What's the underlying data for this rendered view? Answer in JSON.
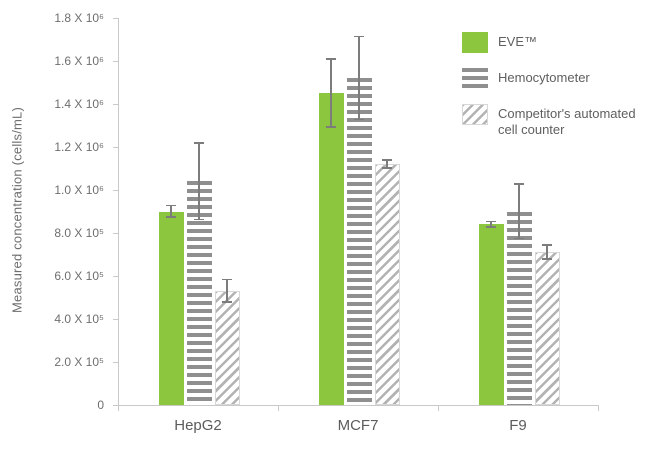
{
  "chart_data": {
    "type": "bar",
    "title": "",
    "xlabel": "",
    "ylabel": "Measured concentration (cells/mL)",
    "categories": [
      "HepG2",
      "MCF7",
      "F9"
    ],
    "series": [
      {
        "name": "EVE™",
        "pattern": "solid-green",
        "values": [
          900000,
          1450000,
          840000
        ],
        "errors": [
          30000,
          160000,
          15000
        ]
      },
      {
        "name": "Hemocytometer",
        "pattern": "horizontal-stripes",
        "values": [
          1040000,
          1520000,
          900000
        ],
        "errors": [
          180000,
          195000,
          130000
        ]
      },
      {
        "name": "Competitor's automated cell counter",
        "pattern": "diagonal-stripes",
        "values": [
          530000,
          1120000,
          710000
        ],
        "errors": [
          55000,
          20000,
          35000
        ]
      }
    ],
    "ylim": [
      0,
      1800000
    ],
    "yticks": {
      "values": [
        0,
        200000,
        400000,
        600000,
        800000,
        1000000,
        1200000,
        1400000,
        1600000,
        1800000
      ],
      "labels": [
        "0",
        "2.0 X 10⁵",
        "4.0 X 10⁵",
        "6.0 X 10⁵",
        "8.0 X 10⁵",
        "1.0 X 10⁶",
        "1.2 X 10⁶",
        "1.4 X 10⁶",
        "1.6 X 10⁶",
        "1.8 X 10⁶"
      ]
    },
    "legend": [
      {
        "label": "EVE™",
        "pattern": "solid-green"
      },
      {
        "label": "Hemocytometer",
        "pattern": "horizontal-stripes"
      },
      {
        "label": "Competitor's automated cell counter",
        "pattern": "diagonal-stripes"
      }
    ],
    "legend_position": "top-right",
    "grid": false,
    "colors": {
      "eve_green": "#8cc63f",
      "stripe_gray": "#8f8f8f",
      "stripe_light_gray": "#b3b3b3",
      "axis_gray": "#c9c9c9",
      "text_gray": "#6e6e6e"
    }
  }
}
